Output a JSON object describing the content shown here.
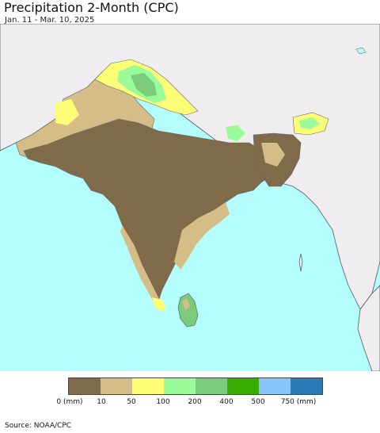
{
  "title": "Precipitation 2-Month (CPC)",
  "subtitle": "Jan. 11 - Mar. 10, 2025",
  "source": "Source: NOAA/CPC",
  "legend": {
    "colors": [
      "#7f6a4a",
      "#d4bd86",
      "#fffe77",
      "#9afb9a",
      "#7acc7a",
      "#38ad00",
      "#88c5fa",
      "#2b7ab8"
    ],
    "labels": [
      "0 (mm)",
      "10",
      "50",
      "100",
      "200",
      "400",
      "500",
      "750 (mm)"
    ]
  },
  "map_colors": {
    "ocean": "#b4fdfe",
    "outside_land": "#f0edf1",
    "very_dry": "#7f6a4a",
    "dry": "#d4bd86",
    "moderate": "#fffe77",
    "wet": "#9afb9a",
    "wetter": "#7acc7a"
  }
}
